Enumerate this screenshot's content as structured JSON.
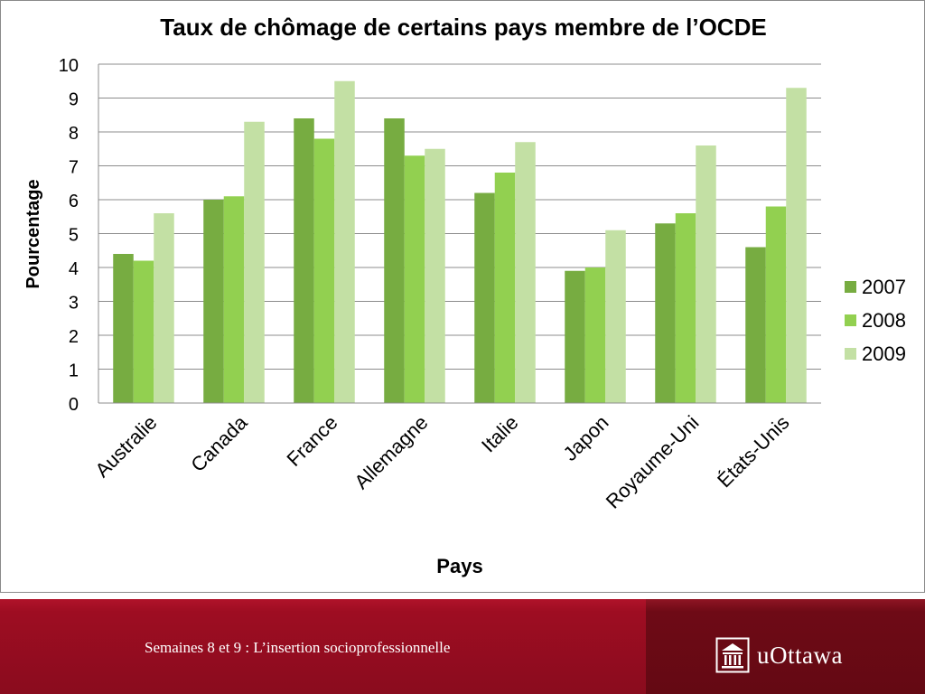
{
  "chart_data": {
    "type": "bar",
    "title": "Taux de chômage de certains pays membre de l’OCDE",
    "xlabel": "Pays",
    "ylabel": "Pourcentage",
    "categories": [
      "Australie",
      "Canada",
      "France",
      "Allemagne",
      "Italie",
      "Japon",
      "Royaume-Uni",
      "États-Unis"
    ],
    "series": [
      {
        "name": "2007",
        "color": "#77ac41",
        "values": [
          4.4,
          6.0,
          8.4,
          8.4,
          6.2,
          3.9,
          5.3,
          4.6
        ]
      },
      {
        "name": "2008",
        "color": "#92d050",
        "values": [
          4.2,
          6.1,
          7.8,
          7.3,
          6.8,
          4.0,
          5.6,
          5.8
        ]
      },
      {
        "name": "2009",
        "color": "#c3e0a4",
        "values": [
          5.6,
          8.3,
          9.5,
          7.5,
          7.7,
          5.1,
          7.6,
          9.3
        ]
      }
    ],
    "ylim": [
      0,
      10
    ],
    "yticks": [
      "0",
      "1",
      "2",
      "3",
      "4",
      "5",
      "6",
      "7",
      "8",
      "9",
      "10"
    ],
    "grid": true,
    "legend": "right"
  },
  "footer": {
    "caption": "Semaines 8 et 9 : L’insertion socioprofessionnelle",
    "logo_text": "uOttawa",
    "logo_icon": "building-icon"
  }
}
